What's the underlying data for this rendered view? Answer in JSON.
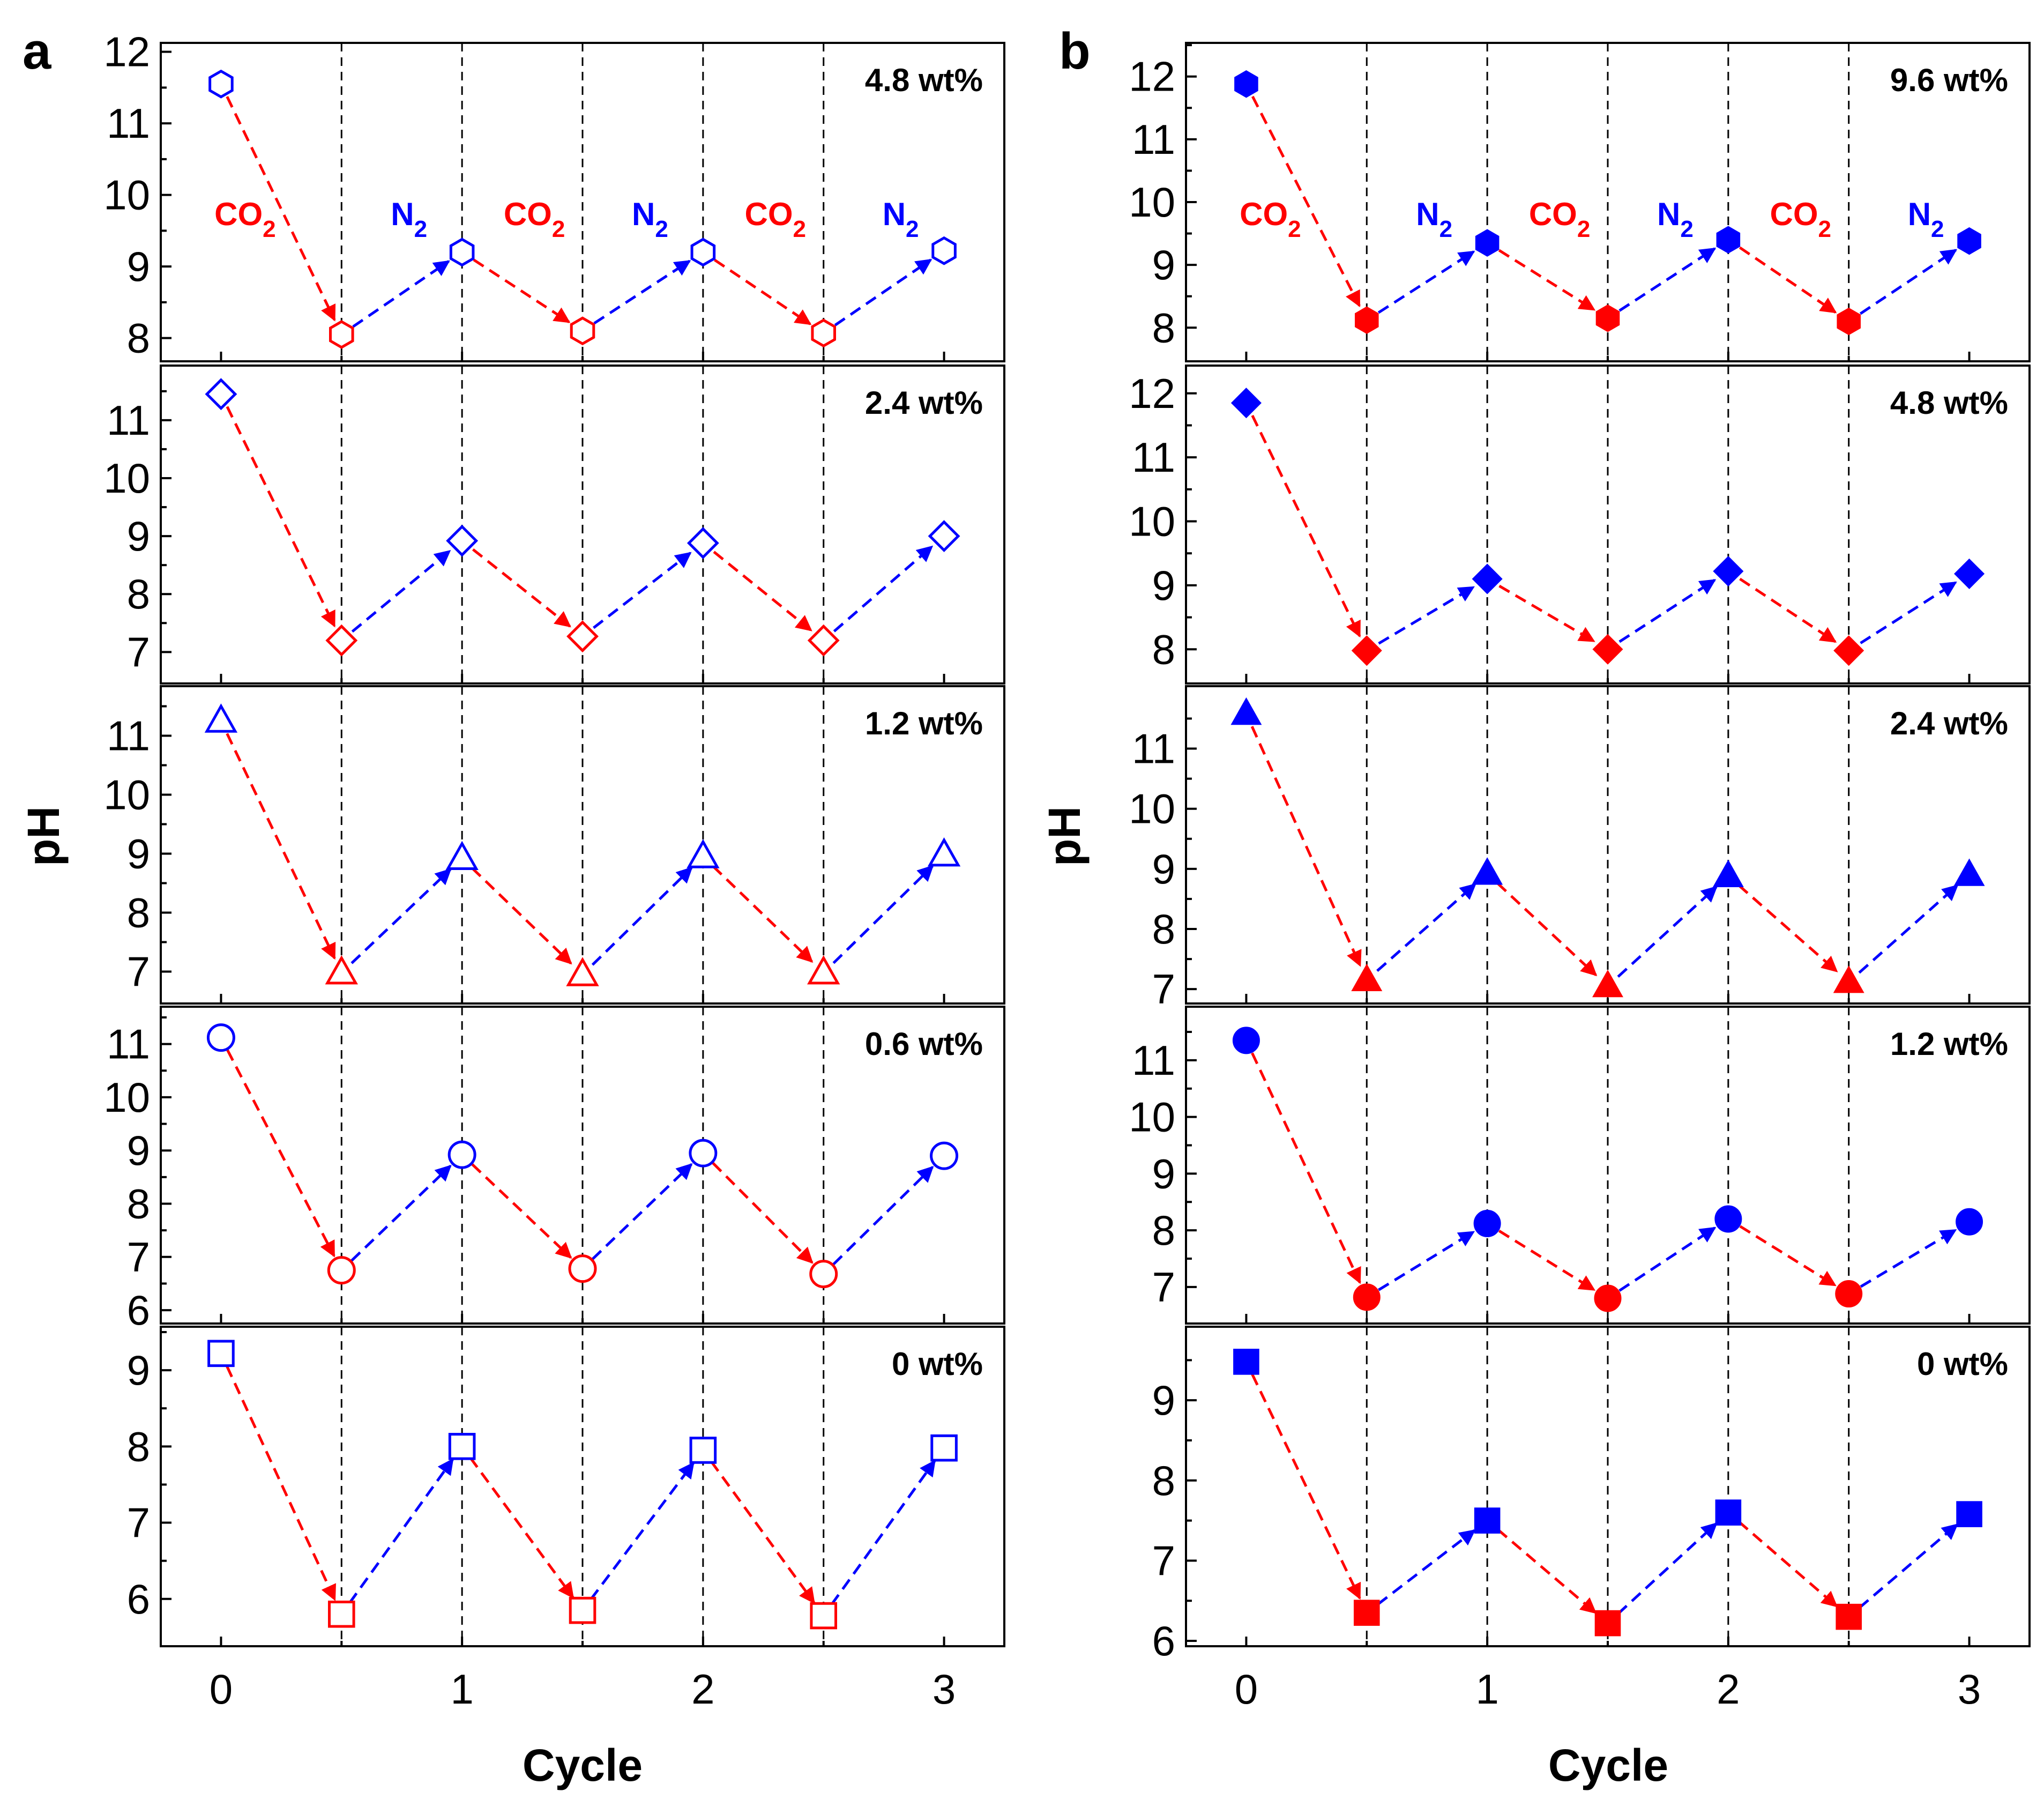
{
  "colors": {
    "co2": "#ff0000",
    "n2": "#0000ff",
    "axis": "#000000",
    "guide": "#000000"
  },
  "chart_data": [
    {
      "type": "line",
      "panel": "a",
      "marker_fill": "hollow",
      "xlabel": "Cycle",
      "ylabel": "pH",
      "x": [
        0,
        0.5,
        1,
        1.5,
        2,
        2.5,
        3
      ],
      "xticks": [
        "0",
        "1",
        "2",
        "3"
      ],
      "xlim": [
        -0.25,
        3.25
      ],
      "phase_labels": [
        {
          "main": "CO",
          "sub": "2",
          "gas": "co2",
          "x": 0.1
        },
        {
          "main": "N",
          "sub": "2",
          "gas": "n2",
          "x": 0.78
        },
        {
          "main": "CO",
          "sub": "2",
          "gas": "co2",
          "x": 1.3
        },
        {
          "main": "N",
          "sub": "2",
          "gas": "n2",
          "x": 1.78
        },
        {
          "main": "CO",
          "sub": "2",
          "gas": "co2",
          "x": 2.3
        },
        {
          "main": "N",
          "sub": "2",
          "gas": "n2",
          "x": 2.82
        }
      ],
      "subplots": [
        {
          "label": "4.8 wt%",
          "marker": "hexagon",
          "ylim": [
            7.75,
            12.05
          ],
          "yticks": [
            "8",
            "9",
            "10",
            "11",
            "12"
          ],
          "values": [
            11.55,
            8.05,
            9.2,
            8.1,
            9.2,
            8.07,
            9.22
          ]
        },
        {
          "label": "2.4 wt%",
          "marker": "diamond",
          "ylim": [
            6.55,
            11.85
          ],
          "yticks": [
            "7",
            "8",
            "9",
            "10",
            "11"
          ],
          "values": [
            11.45,
            7.2,
            8.92,
            7.27,
            8.88,
            7.2,
            9.0
          ]
        },
        {
          "label": "1.2 wt%",
          "marker": "triangle",
          "ylim": [
            6.55,
            11.75
          ],
          "yticks": [
            "7",
            "8",
            "9",
            "10",
            "11"
          ],
          "values": [
            11.25,
            6.98,
            8.92,
            6.95,
            8.95,
            6.98,
            8.98
          ]
        },
        {
          "label": "0.6 wt%",
          "marker": "circle",
          "ylim": [
            5.85,
            11.6
          ],
          "yticks": [
            "6",
            "7",
            "8",
            "9",
            "10",
            "11"
          ],
          "values": [
            11.12,
            6.75,
            8.92,
            6.78,
            8.95,
            6.68,
            8.9
          ]
        },
        {
          "label": "0 wt%",
          "marker": "square",
          "ylim": [
            5.45,
            9.5
          ],
          "yticks": [
            "6",
            "7",
            "8",
            "9"
          ],
          "values": [
            9.22,
            5.8,
            8.0,
            5.85,
            7.95,
            5.78,
            7.98
          ]
        }
      ]
    },
    {
      "type": "line",
      "panel": "b",
      "marker_fill": "filled",
      "xlabel": "Cycle",
      "ylabel": "pH",
      "x": [
        0,
        0.5,
        1,
        1.5,
        2,
        2.5,
        3
      ],
      "xticks": [
        "0",
        "1",
        "2",
        "3"
      ],
      "xlim": [
        -0.25,
        3.25
      ],
      "phase_labels": [
        {
          "main": "CO",
          "sub": "2",
          "gas": "co2",
          "x": 0.1
        },
        {
          "main": "N",
          "sub": "2",
          "gas": "n2",
          "x": 0.78
        },
        {
          "main": "CO",
          "sub": "2",
          "gas": "co2",
          "x": 1.3
        },
        {
          "main": "N",
          "sub": "2",
          "gas": "n2",
          "x": 1.78
        },
        {
          "main": "CO",
          "sub": "2",
          "gas": "co2",
          "x": 2.3
        },
        {
          "main": "N",
          "sub": "2",
          "gas": "n2",
          "x": 2.82
        }
      ],
      "subplots": [
        {
          "label": "9.6 wt%",
          "marker": "hexagon",
          "ylim": [
            7.55,
            12.45
          ],
          "yticks": [
            "8",
            "9",
            "10",
            "11",
            "12"
          ],
          "values": [
            11.88,
            8.12,
            9.35,
            8.15,
            9.4,
            8.1,
            9.38
          ]
        },
        {
          "label": "4.8 wt%",
          "marker": "diamond",
          "ylim": [
            7.55,
            12.35
          ],
          "yticks": [
            "8",
            "9",
            "10",
            "11",
            "12"
          ],
          "values": [
            11.85,
            7.98,
            9.1,
            8.0,
            9.22,
            7.98,
            9.18
          ]
        },
        {
          "label": "2.4 wt%",
          "marker": "triangle",
          "ylim": [
            6.85,
            11.95
          ],
          "yticks": [
            "7",
            "8",
            "9",
            "10",
            "11"
          ],
          "values": [
            11.58,
            7.15,
            8.92,
            7.05,
            8.88,
            7.12,
            8.9
          ]
        },
        {
          "label": "1.2 wt%",
          "marker": "circle",
          "ylim": [
            6.45,
            11.85
          ],
          "yticks": [
            "7",
            "8",
            "9",
            "10",
            "11"
          ],
          "values": [
            11.35,
            6.82,
            8.12,
            6.8,
            8.2,
            6.88,
            8.15
          ]
        },
        {
          "label": "0 wt%",
          "marker": "square",
          "ylim": [
            6.0,
            9.85
          ],
          "yticks": [
            "6",
            "7",
            "8",
            "9"
          ],
          "values": [
            9.48,
            6.35,
            7.5,
            6.22,
            7.6,
            6.3,
            7.58
          ]
        }
      ]
    }
  ]
}
